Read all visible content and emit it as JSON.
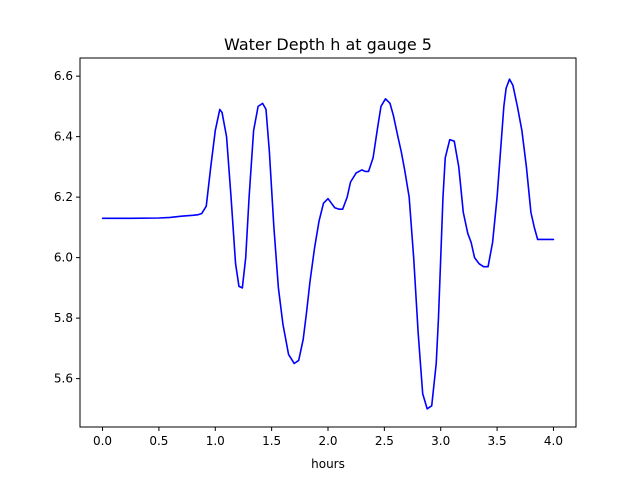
{
  "chart_data": {
    "type": "line",
    "title": "Water Depth h at gauge 5",
    "xlabel": "hours",
    "ylabel": "",
    "xlim": [
      -0.2,
      4.2
    ],
    "ylim": [
      5.44,
      6.66
    ],
    "xticks": [
      0.0,
      0.5,
      1.0,
      1.5,
      2.0,
      2.5,
      3.0,
      3.5,
      4.0
    ],
    "xtick_labels": [
      "0.0",
      "0.5",
      "1.0",
      "1.5",
      "2.0",
      "2.5",
      "3.0",
      "3.5",
      "4.0"
    ],
    "yticks": [
      5.6,
      5.8,
      6.0,
      6.2,
      6.4,
      6.6
    ],
    "ytick_labels": [
      "5.6",
      "5.8",
      "6.0",
      "6.2",
      "6.4",
      "6.6"
    ],
    "grid": false,
    "series": [
      {
        "color": "#0000ff",
        "x": [
          0.0,
          0.25,
          0.5,
          0.6,
          0.7,
          0.8,
          0.85,
          0.88,
          0.92,
          0.96,
          1.0,
          1.04,
          1.06,
          1.1,
          1.14,
          1.18,
          1.21,
          1.24,
          1.27,
          1.3,
          1.34,
          1.38,
          1.42,
          1.45,
          1.48,
          1.52,
          1.56,
          1.6,
          1.65,
          1.7,
          1.74,
          1.78,
          1.81,
          1.84,
          1.88,
          1.92,
          1.96,
          2.0,
          2.03,
          2.06,
          2.1,
          2.13,
          2.17,
          2.2,
          2.25,
          2.3,
          2.33,
          2.36,
          2.4,
          2.44,
          2.47,
          2.51,
          2.55,
          2.58,
          2.62,
          2.65,
          2.68,
          2.72,
          2.76,
          2.8,
          2.84,
          2.88,
          2.92,
          2.96,
          2.98,
          3.0,
          3.02,
          3.04,
          3.08,
          3.12,
          3.16,
          3.2,
          3.24,
          3.27,
          3.3,
          3.34,
          3.38,
          3.42,
          3.46,
          3.5,
          3.53,
          3.56,
          3.58,
          3.61,
          3.64,
          3.68,
          3.72,
          3.76,
          3.8,
          3.83,
          3.86,
          3.9,
          3.93,
          3.96,
          4.0
        ],
        "y": [
          6.13,
          6.13,
          6.131,
          6.133,
          6.137,
          6.14,
          6.142,
          6.146,
          6.17,
          6.3,
          6.42,
          6.49,
          6.48,
          6.4,
          6.2,
          5.98,
          5.905,
          5.9,
          6.0,
          6.2,
          6.42,
          6.5,
          6.51,
          6.49,
          6.35,
          6.1,
          5.9,
          5.78,
          5.68,
          5.65,
          5.66,
          5.73,
          5.82,
          5.92,
          6.03,
          6.12,
          6.18,
          6.195,
          6.18,
          6.165,
          6.16,
          6.16,
          6.2,
          6.25,
          6.28,
          6.29,
          6.285,
          6.285,
          6.33,
          6.43,
          6.5,
          6.525,
          6.51,
          6.47,
          6.4,
          6.35,
          6.29,
          6.2,
          6.0,
          5.75,
          5.55,
          5.5,
          5.51,
          5.65,
          5.8,
          6.0,
          6.2,
          6.33,
          6.39,
          6.385,
          6.3,
          6.15,
          6.08,
          6.05,
          6.0,
          5.98,
          5.97,
          5.97,
          6.05,
          6.2,
          6.35,
          6.5,
          6.56,
          6.59,
          6.57,
          6.5,
          6.42,
          6.3,
          6.15,
          6.1,
          6.06,
          6.06,
          6.06,
          6.06,
          6.06
        ]
      }
    ]
  }
}
